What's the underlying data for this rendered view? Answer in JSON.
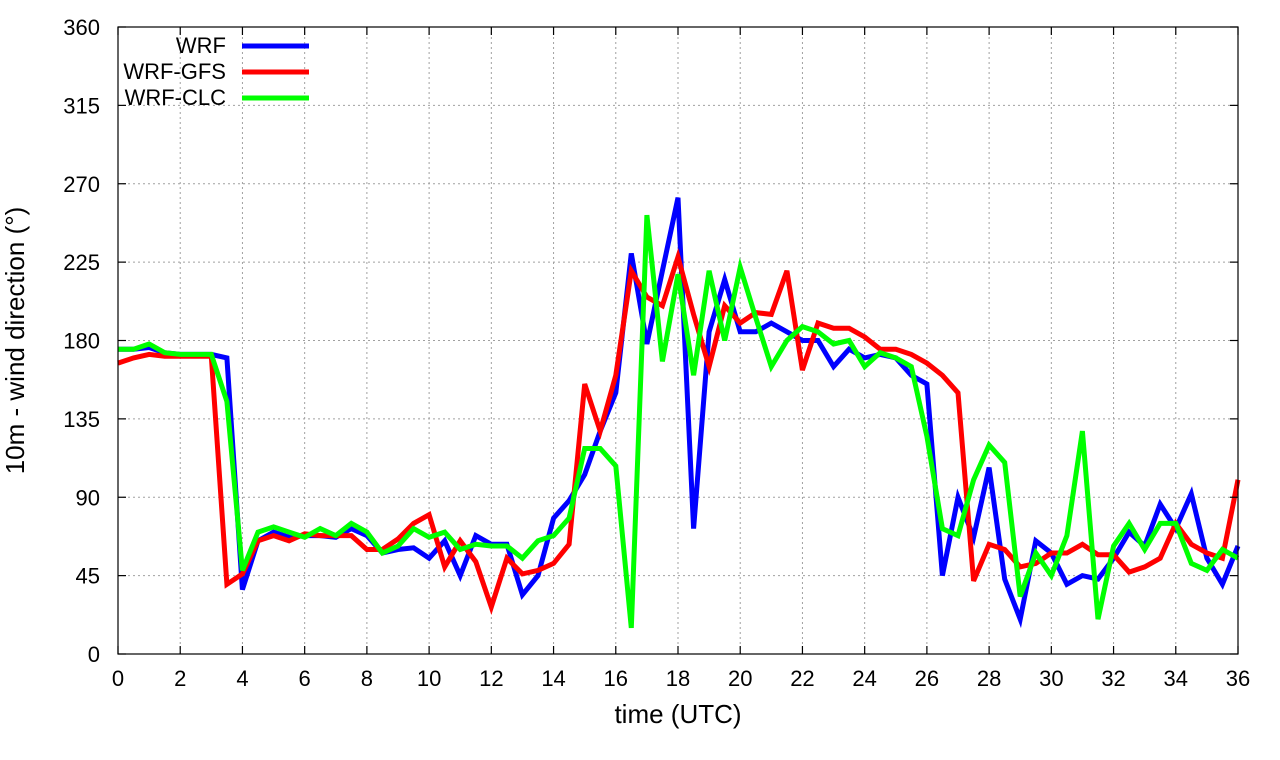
{
  "chart_data": {
    "type": "line",
    "xlabel": "time (UTC)",
    "ylabel": "10m - wind direction (°)",
    "xlim": [
      0,
      36
    ],
    "ylim": [
      0,
      360
    ],
    "xticks": [
      0,
      2,
      4,
      6,
      8,
      10,
      12,
      14,
      16,
      18,
      20,
      22,
      24,
      26,
      28,
      30,
      32,
      34,
      36
    ],
    "yticks": [
      0,
      45,
      90,
      135,
      180,
      225,
      270,
      315,
      360
    ],
    "grid": true,
    "legend_position": "top-left",
    "series": [
      {
        "name": "WRF",
        "color": "#0000ff",
        "x": [
          0,
          0.5,
          1,
          1.5,
          2,
          2.5,
          3,
          3.5,
          4,
          4.5,
          5,
          5.5,
          6,
          6.5,
          7,
          7.5,
          8,
          8.5,
          9,
          9.5,
          10,
          10.5,
          11,
          11.5,
          12,
          12.5,
          13,
          13.5,
          14,
          14.5,
          15,
          15.5,
          16,
          16.5,
          17,
          17.5,
          18,
          18.5,
          19,
          19.5,
          20,
          20.5,
          21,
          21.5,
          22,
          22.5,
          23,
          23.5,
          24,
          24.5,
          25,
          25.5,
          26,
          26.5,
          27,
          27.5,
          28,
          28.5,
          29,
          29.5,
          30,
          30.5,
          31,
          31.5,
          32,
          32.5,
          33,
          33.5,
          34,
          34.5,
          35,
          35.5,
          36
        ],
        "y": [
          175,
          175,
          176,
          173,
          172,
          172,
          172,
          170,
          37,
          65,
          70,
          67,
          68,
          68,
          67,
          72,
          68,
          58,
          60,
          61,
          55,
          65,
          45,
          68,
          63,
          63,
          34,
          45,
          78,
          88,
          103,
          128,
          150,
          230,
          178,
          220,
          262,
          72,
          185,
          215,
          185,
          185,
          190,
          185,
          180,
          180,
          165,
          175,
          170,
          172,
          170,
          160,
          155,
          45,
          90,
          67,
          107,
          43,
          20,
          65,
          58,
          40,
          45,
          43,
          55,
          70,
          62,
          86,
          72,
          92,
          55,
          40,
          62
        ]
      },
      {
        "name": "WRF-GFS",
        "color": "#ff0000",
        "x": [
          0,
          0.5,
          1,
          1.5,
          2,
          2.5,
          3,
          3.5,
          4,
          4.5,
          5,
          5.5,
          6,
          6.5,
          7,
          7.5,
          8,
          8.5,
          9,
          9.5,
          10,
          10.5,
          11,
          11.5,
          12,
          12.5,
          13,
          13.5,
          14,
          14.5,
          15,
          15.5,
          16,
          16.5,
          17,
          17.5,
          18,
          18.5,
          19,
          19.5,
          20,
          20.5,
          21,
          21.5,
          22,
          22.5,
          23,
          23.5,
          24,
          24.5,
          25,
          25.5,
          26,
          26.5,
          27,
          27.5,
          28,
          28.5,
          29,
          29.5,
          30,
          30.5,
          31,
          31.5,
          32,
          32.5,
          33,
          33.5,
          34,
          34.5,
          35,
          35.5,
          36
        ],
        "y": [
          167,
          170,
          172,
          171,
          171,
          171,
          171,
          40,
          46,
          65,
          68,
          65,
          69,
          68,
          68,
          68,
          60,
          60,
          66,
          75,
          80,
          50,
          65,
          53,
          27,
          55,
          46,
          48,
          52,
          63,
          155,
          128,
          160,
          220,
          205,
          200,
          228,
          195,
          165,
          200,
          190,
          196,
          195,
          220,
          163,
          190,
          187,
          187,
          182,
          175,
          175,
          172,
          167,
          160,
          150,
          42,
          63,
          60,
          50,
          52,
          58,
          58,
          63,
          57,
          57,
          47,
          50,
          55,
          75,
          63,
          58,
          55,
          100
        ]
      },
      {
        "name": "WRF-CLC",
        "color": "#00ff00",
        "x": [
          0,
          0.5,
          1,
          1.5,
          2,
          2.5,
          3,
          3.5,
          4,
          4.5,
          5,
          5.5,
          6,
          6.5,
          7,
          7.5,
          8,
          8.5,
          9,
          9.5,
          10,
          10.5,
          11,
          11.5,
          12,
          12.5,
          13,
          13.5,
          14,
          14.5,
          15,
          15.5,
          16,
          16.5,
          17,
          17.5,
          18,
          18.5,
          19,
          19.5,
          20,
          20.5,
          21,
          21.5,
          22,
          22.5,
          23,
          23.5,
          24,
          24.5,
          25,
          25.5,
          26,
          26.5,
          27,
          27.5,
          28,
          28.5,
          29,
          29.5,
          30,
          30.5,
          31,
          31.5,
          32,
          32.5,
          33,
          33.5,
          34,
          34.5,
          35,
          35.5,
          36
        ],
        "y": [
          175,
          175,
          178,
          173,
          172,
          172,
          172,
          145,
          48,
          70,
          73,
          70,
          67,
          72,
          68,
          75,
          70,
          58,
          62,
          72,
          67,
          70,
          60,
          63,
          62,
          62,
          55,
          65,
          68,
          78,
          118,
          118,
          108,
          15,
          252,
          168,
          218,
          160,
          220,
          180,
          222,
          193,
          165,
          180,
          188,
          185,
          178,
          180,
          165,
          173,
          170,
          165,
          125,
          72,
          68,
          100,
          120,
          110,
          33,
          58,
          45,
          68,
          128,
          20,
          62,
          75,
          60,
          75,
          75,
          52,
          48,
          60,
          55
        ]
      }
    ]
  }
}
